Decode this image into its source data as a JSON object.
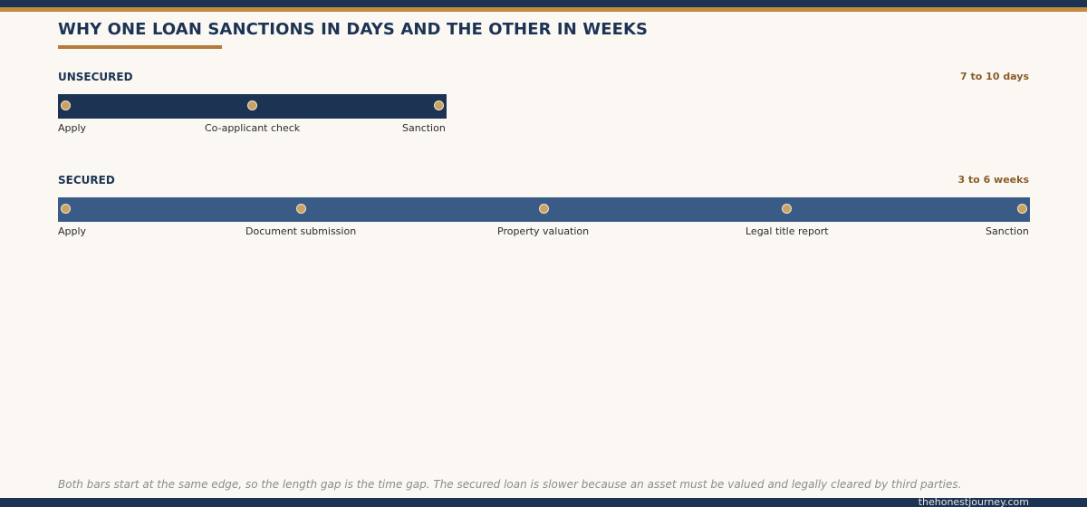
{
  "title": "WHY ONE LOAN SANCTIONS IN DAYS AND THE OTHER IN WEEKS",
  "colors": {
    "navy": "#1c3354",
    "secured_bar": "#395b86",
    "gold": "#c28a3e",
    "milestone": "#c9a264",
    "background": "#fbf8f4"
  },
  "tracks": [
    {
      "label": "UNSECURED",
      "duration": "7 to 10 days",
      "steps": [
        "Apply",
        "Co-applicant check",
        "Sanction"
      ]
    },
    {
      "label": "SECURED",
      "duration": "3 to 6 weeks",
      "steps": [
        "Apply",
        "Document submission",
        "Property valuation",
        "Legal title report",
        "Sanction"
      ]
    }
  ],
  "footnote": "Both bars start at the same edge, so the length gap is the time gap. The secured loan is slower because an asset must be valued and legally cleared by third parties.",
  "site": "thehonestjourney.com"
}
